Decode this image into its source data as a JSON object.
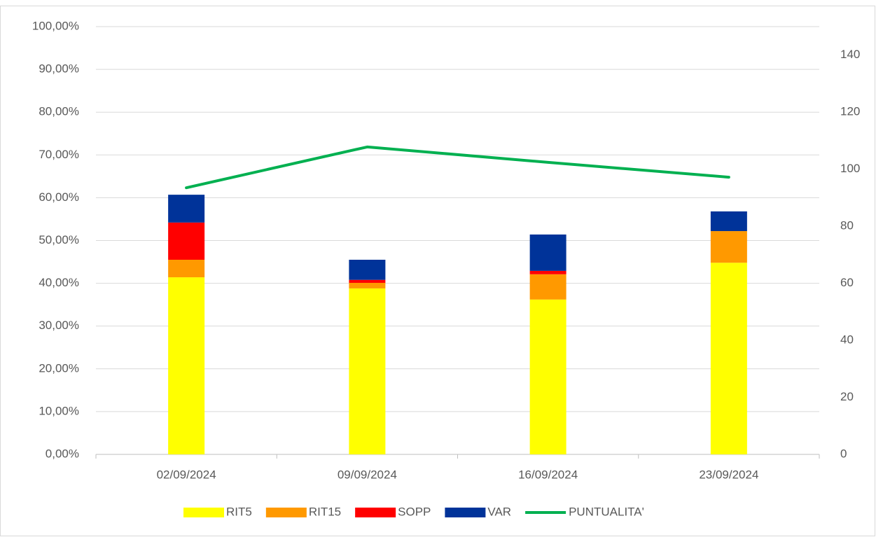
{
  "chart_data": {
    "type": "bar",
    "categories": [
      "02/09/2024",
      "09/09/2024",
      "16/09/2024",
      "23/09/2024"
    ],
    "stacked": true,
    "series": [
      {
        "name": "RIT5",
        "color": "#ffff00",
        "values": [
          41.4,
          38.8,
          36.2,
          44.8
        ]
      },
      {
        "name": "RIT15",
        "color": "#ff9900",
        "values": [
          4.1,
          1.3,
          5.9,
          7.4
        ]
      },
      {
        "name": "SOPP",
        "color": "#ff0000",
        "values": [
          8.7,
          0.7,
          0.8,
          0
        ]
      },
      {
        "name": "VAR",
        "color": "#003399",
        "values": [
          6.5,
          4.7,
          8.5,
          4.6
        ]
      },
      {
        "name": "PUNTUALITA'",
        "color": "#00b050",
        "type": "line",
        "axis": "y2",
        "values": [
          93.5,
          107.8,
          102.4,
          97.2
        ]
      }
    ],
    "ylim": [
      0,
      100
    ],
    "yticks": [
      {
        "value": 0,
        "label": "0,00%"
      },
      {
        "value": 10,
        "label": "10,00%"
      },
      {
        "value": 20,
        "label": "20,00%"
      },
      {
        "value": 30,
        "label": "30,00%"
      },
      {
        "value": 40,
        "label": "40,00%"
      },
      {
        "value": 50,
        "label": "50,00%"
      },
      {
        "value": 60,
        "label": "60,00%"
      },
      {
        "value": 70,
        "label": "70,00%"
      },
      {
        "value": 80,
        "label": "80,00%"
      },
      {
        "value": 90,
        "label": "90,00%"
      },
      {
        "value": 100,
        "label": "100,00%"
      }
    ],
    "y2lim": [
      0,
      150
    ],
    "y2ticks": [
      0,
      20,
      40,
      60,
      80,
      100,
      120,
      140
    ],
    "grid": true,
    "legend": "bottom"
  }
}
